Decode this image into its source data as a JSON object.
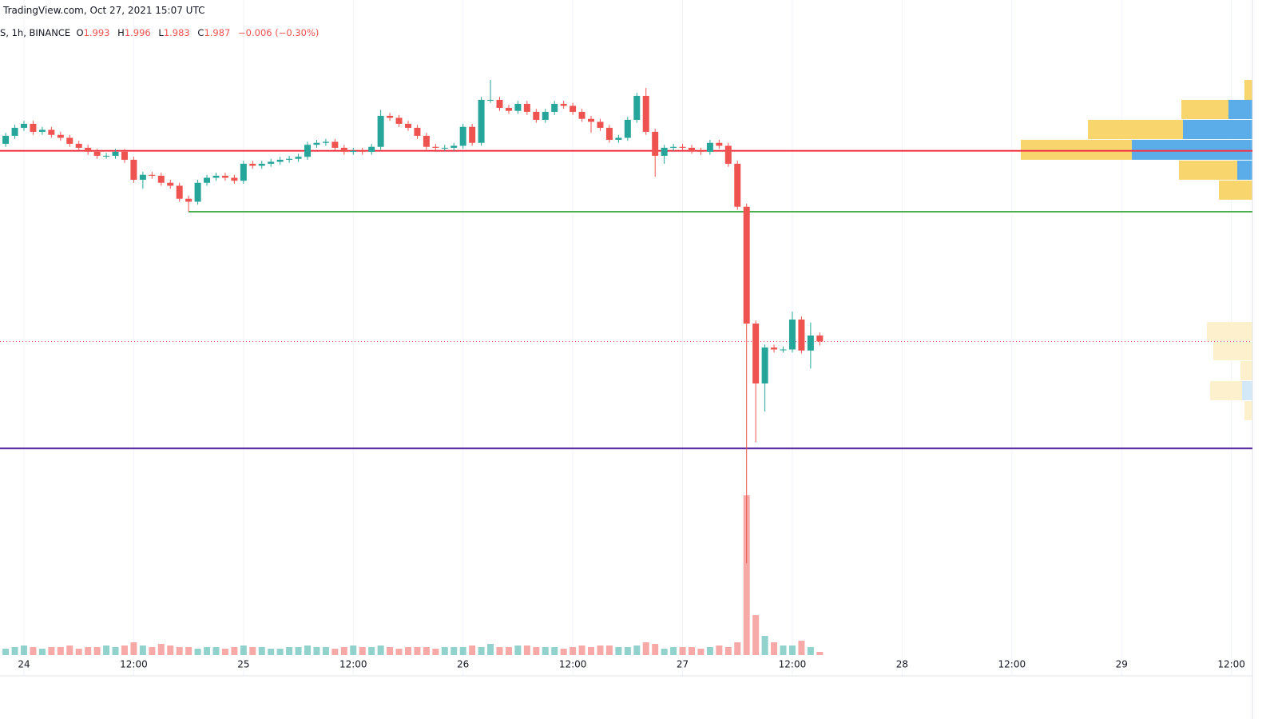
{
  "chart_data": {
    "type": "candlestick",
    "title": "TradingView.com, Oct 27, 2021 15:07 UTC",
    "symbol": "S, 1h, BINANCE",
    "ohlc_labels": [
      "O",
      "H",
      "L",
      "C"
    ],
    "change": "−0.006 (−0.30%)",
    "up_color": "#26a69a",
    "down_color": "#ef5350",
    "x": [
      -2,
      -1,
      0,
      1,
      2,
      3,
      4,
      5,
      6,
      7,
      8,
      9,
      10,
      11,
      12,
      13,
      14,
      15,
      16,
      17,
      18,
      19,
      20,
      21,
      22,
      23,
      24,
      25,
      26,
      27,
      28,
      29,
      30,
      31,
      32,
      33,
      34,
      35,
      36,
      37,
      38,
      39,
      40,
      41,
      42,
      43,
      44,
      45,
      46,
      47,
      48,
      49,
      50,
      51,
      52,
      53,
      54,
      55,
      56,
      57,
      58,
      59,
      60,
      61,
      62,
      63,
      64,
      65,
      66,
      67,
      68,
      69,
      70,
      71,
      72,
      73,
      74,
      75,
      76,
      77,
      78,
      79,
      80,
      81,
      82,
      83,
      84,
      85,
      86,
      87
    ],
    "open": [
      2.185,
      2.193,
      2.201,
      2.205,
      2.197,
      2.199,
      2.194,
      2.191,
      2.185,
      2.181,
      2.177,
      2.173,
      2.173,
      2.177,
      2.169,
      2.149,
      2.154,
      2.153,
      2.146,
      2.143,
      2.13,
      2.127,
      2.146,
      2.151,
      2.153,
      2.151,
      2.148,
      2.165,
      2.163,
      2.165,
      2.167,
      2.169,
      2.17,
      2.172,
      2.184,
      2.186,
      2.187,
      2.181,
      2.177,
      2.178,
      2.177,
      2.182,
      2.213,
      2.211,
      2.205,
      2.201,
      2.193,
      2.182,
      2.181,
      2.181,
      2.183,
      2.202,
      2.186,
      2.229,
      2.229,
      2.221,
      2.218,
      2.225,
      2.217,
      2.209,
      2.217,
      2.225,
      2.223,
      2.217,
      2.21,
      2.207,
      2.201,
      2.189,
      2.191,
      2.209,
      2.233,
      2.197,
      2.173,
      2.181,
      2.182,
      2.181,
      2.178,
      2.177,
      2.186,
      2.183,
      2.165,
      2.122,
      2.005,
      1.945,
      1.981,
      1.979,
      1.979,
      2.009,
      1.978,
      1.993
    ],
    "high": [
      2.196,
      2.204,
      2.208,
      2.208,
      2.202,
      2.202,
      2.197,
      2.194,
      2.188,
      2.184,
      2.18,
      2.176,
      2.18,
      2.18,
      2.172,
      2.157,
      2.157,
      2.156,
      2.149,
      2.146,
      2.133,
      2.149,
      2.154,
      2.156,
      2.156,
      2.154,
      2.168,
      2.168,
      2.168,
      2.17,
      2.172,
      2.173,
      2.175,
      2.187,
      2.189,
      2.19,
      2.19,
      2.184,
      2.181,
      2.181,
      2.185,
      2.219,
      2.216,
      2.214,
      2.208,
      2.204,
      2.196,
      2.185,
      2.184,
      2.186,
      2.205,
      2.205,
      2.232,
      2.249,
      2.232,
      2.224,
      2.228,
      2.228,
      2.22,
      2.22,
      2.228,
      2.228,
      2.226,
      2.22,
      2.213,
      2.21,
      2.204,
      2.194,
      2.212,
      2.236,
      2.241,
      2.2,
      2.184,
      2.185,
      2.185,
      2.184,
      2.181,
      2.189,
      2.189,
      2.186,
      2.168,
      2.125,
      2.008,
      1.984,
      1.984,
      1.982,
      2.017,
      2.012,
      2.006,
      1.996
    ],
    "low": [
      2.182,
      2.19,
      2.198,
      2.194,
      2.194,
      2.191,
      2.188,
      2.182,
      2.178,
      2.174,
      2.17,
      2.17,
      2.17,
      2.166,
      2.146,
      2.14,
      2.15,
      2.143,
      2.14,
      2.127,
      2.117,
      2.124,
      2.143,
      2.148,
      2.148,
      2.145,
      2.145,
      2.16,
      2.16,
      2.162,
      2.164,
      2.166,
      2.167,
      2.169,
      2.181,
      2.183,
      2.178,
      2.174,
      2.174,
      2.174,
      2.174,
      2.179,
      2.208,
      2.202,
      2.198,
      2.19,
      2.179,
      2.178,
      2.178,
      2.178,
      2.18,
      2.183,
      2.183,
      2.226,
      2.218,
      2.215,
      2.215,
      2.214,
      2.206,
      2.206,
      2.214,
      2.22,
      2.214,
      2.207,
      2.196,
      2.198,
      2.186,
      2.186,
      2.188,
      2.206,
      2.194,
      2.152,
      2.165,
      2.178,
      2.178,
      2.175,
      2.174,
      2.174,
      2.18,
      2.162,
      2.119,
      1.765,
      1.886,
      1.917,
      1.976,
      1.976,
      1.976,
      1.975,
      1.96,
      1.983
    ],
    "close": [
      2.193,
      2.201,
      2.205,
      2.197,
      2.199,
      2.194,
      2.191,
      2.185,
      2.181,
      2.177,
      2.173,
      2.173,
      2.177,
      2.169,
      2.149,
      2.154,
      2.153,
      2.146,
      2.143,
      2.13,
      2.127,
      2.146,
      2.151,
      2.153,
      2.151,
      2.148,
      2.165,
      2.163,
      2.165,
      2.167,
      2.169,
      2.17,
      2.172,
      2.184,
      2.186,
      2.187,
      2.181,
      2.177,
      2.178,
      2.177,
      2.182,
      2.213,
      2.211,
      2.205,
      2.201,
      2.193,
      2.182,
      2.181,
      2.181,
      2.183,
      2.202,
      2.186,
      2.229,
      2.229,
      2.221,
      2.218,
      2.225,
      2.217,
      2.209,
      2.217,
      2.225,
      2.223,
      2.217,
      2.21,
      2.207,
      2.201,
      2.189,
      2.191,
      2.209,
      2.233,
      2.197,
      2.173,
      2.181,
      2.182,
      2.181,
      2.178,
      2.177,
      2.186,
      2.183,
      2.165,
      2.122,
      2.005,
      1.945,
      1.981,
      1.979,
      1.979,
      2.009,
      1.978,
      1.993,
      1.987
    ],
    "volume": [
      4,
      5,
      6,
      5,
      4,
      5,
      5,
      6,
      4,
      5,
      5,
      6,
      5,
      6,
      8,
      6,
      5,
      7,
      6,
      5,
      5,
      4,
      5,
      5,
      4,
      5,
      6,
      5,
      5,
      4,
      4,
      5,
      5,
      6,
      5,
      5,
      4,
      5,
      6,
      5,
      5,
      6,
      5,
      4,
      5,
      5,
      5,
      4,
      5,
      5,
      5,
      6,
      5,
      7,
      5,
      5,
      6,
      6,
      5,
      5,
      5,
      4,
      5,
      6,
      5,
      6,
      6,
      5,
      5,
      6,
      8,
      7,
      4,
      5,
      5,
      5,
      4,
      5,
      6,
      5,
      8,
      100,
      25,
      12,
      8,
      6,
      6,
      9,
      5,
      2
    ],
    "vlim": [
      0,
      100
    ],
    "xlim": [
      -2.62,
      134.3
    ],
    "xticks": [
      {
        "value": 0,
        "label": "24"
      },
      {
        "value": 12,
        "label": "12:00"
      },
      {
        "value": 24,
        "label": "25"
      },
      {
        "value": 36,
        "label": "12:00"
      },
      {
        "value": 48,
        "label": "26"
      },
      {
        "value": 60,
        "label": "12:00"
      },
      {
        "value": 72,
        "label": "27"
      },
      {
        "value": 84,
        "label": "12:00"
      },
      {
        "value": 96,
        "label": "28"
      },
      {
        "value": 108,
        "label": "12:00"
      },
      {
        "value": 120,
        "label": "29"
      },
      {
        "value": 132,
        "label": "12:00"
      }
    ],
    "ylim": [
      1.673,
      2.329
    ],
    "grid": true,
    "lines": [
      {
        "value": 2.178,
        "color": "#f23645"
      },
      {
        "value": 2.117,
        "color": "#4caf50",
        "start": 18
      },
      {
        "value": 1.88,
        "color": "#5b2ca0"
      }
    ]
  }
}
